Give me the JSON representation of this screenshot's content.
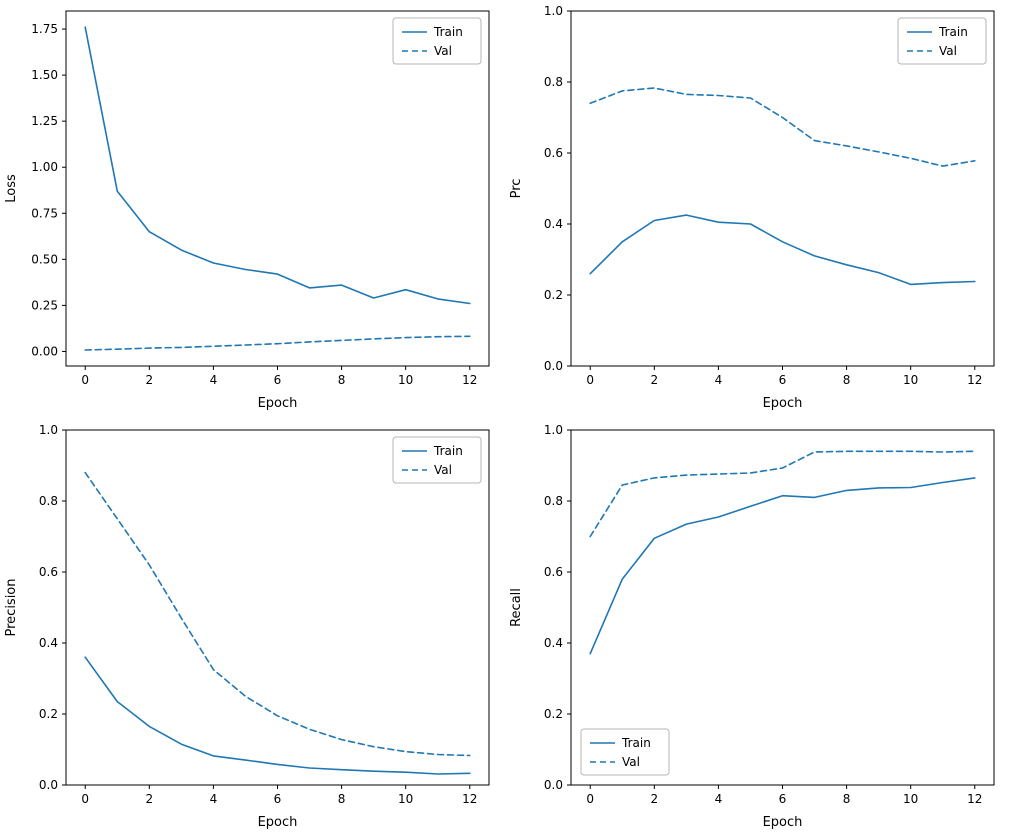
{
  "figure": {
    "background": "#ffffff",
    "line_color": "#1f77b4",
    "axis_color": "#000000",
    "legend_border_color": "#b4b4b4",
    "legend_labels": [
      "Train",
      "Val"
    ]
  },
  "chart_data": [
    {
      "type": "line",
      "title": "",
      "xlabel": "Epoch",
      "ylabel": "Loss",
      "x": [
        0,
        1,
        2,
        3,
        4,
        5,
        6,
        7,
        8,
        9,
        10,
        11,
        12
      ],
      "series": [
        {
          "name": "Train",
          "style": "solid",
          "values": [
            1.76,
            0.87,
            0.65,
            0.55,
            0.48,
            0.445,
            0.42,
            0.345,
            0.36,
            0.29,
            0.335,
            0.285,
            0.26
          ]
        },
        {
          "name": "Val",
          "style": "dashed",
          "values": [
            0.008,
            0.012,
            0.018,
            0.022,
            0.028,
            0.035,
            0.042,
            0.052,
            0.06,
            0.068,
            0.075,
            0.08,
            0.082
          ]
        }
      ],
      "xlim": [
        -0.6,
        12.6
      ],
      "ylim": [
        -0.079,
        1.848
      ],
      "xticks": [
        0,
        2,
        4,
        6,
        8,
        10,
        12
      ],
      "yticks": [
        0.0,
        0.25,
        0.5,
        0.75,
        1.0,
        1.25,
        1.5,
        1.75
      ],
      "ytick_decimals": 2,
      "grid": false,
      "legend_position": "upper-right"
    },
    {
      "type": "line",
      "title": "",
      "xlabel": "Epoch",
      "ylabel": "Prc",
      "x": [
        0,
        1,
        2,
        3,
        4,
        5,
        6,
        7,
        8,
        9,
        10,
        11,
        12
      ],
      "series": [
        {
          "name": "Train",
          "style": "solid",
          "values": [
            0.26,
            0.35,
            0.41,
            0.425,
            0.405,
            0.4,
            0.35,
            0.31,
            0.285,
            0.263,
            0.23,
            0.235,
            0.238
          ]
        },
        {
          "name": "Val",
          "style": "dashed",
          "values": [
            0.74,
            0.775,
            0.783,
            0.765,
            0.762,
            0.755,
            0.7,
            0.635,
            0.62,
            0.603,
            0.585,
            0.563,
            0.578
          ]
        }
      ],
      "xlim": [
        -0.6,
        12.6
      ],
      "ylim": [
        0,
        1
      ],
      "xticks": [
        0,
        2,
        4,
        6,
        8,
        10,
        12
      ],
      "yticks": [
        0.0,
        0.2,
        0.4,
        0.6,
        0.8,
        1.0
      ],
      "ytick_decimals": 1,
      "grid": false,
      "legend_position": "upper-right"
    },
    {
      "type": "line",
      "title": "",
      "xlabel": "Epoch",
      "ylabel": "Precision",
      "x": [
        0,
        1,
        2,
        3,
        4,
        5,
        6,
        7,
        8,
        9,
        10,
        11,
        12
      ],
      "series": [
        {
          "name": "Train",
          "style": "solid",
          "values": [
            0.36,
            0.235,
            0.165,
            0.115,
            0.082,
            0.07,
            0.058,
            0.048,
            0.043,
            0.039,
            0.036,
            0.031,
            0.033
          ]
        },
        {
          "name": "Val",
          "style": "dashed",
          "values": [
            0.88,
            0.75,
            0.62,
            0.47,
            0.325,
            0.25,
            0.195,
            0.157,
            0.128,
            0.108,
            0.094,
            0.086,
            0.083
          ]
        }
      ],
      "xlim": [
        -0.6,
        12.6
      ],
      "ylim": [
        0,
        1
      ],
      "xticks": [
        0,
        2,
        4,
        6,
        8,
        10,
        12
      ],
      "yticks": [
        0.0,
        0.2,
        0.4,
        0.6,
        0.8,
        1.0
      ],
      "ytick_decimals": 1,
      "grid": false,
      "legend_position": "upper-right"
    },
    {
      "type": "line",
      "title": "",
      "xlabel": "Epoch",
      "ylabel": "Recall",
      "x": [
        0,
        1,
        2,
        3,
        4,
        5,
        6,
        7,
        8,
        9,
        10,
        11,
        12
      ],
      "series": [
        {
          "name": "Train",
          "style": "solid",
          "values": [
            0.37,
            0.58,
            0.695,
            0.735,
            0.755,
            0.785,
            0.815,
            0.81,
            0.83,
            0.837,
            0.838,
            0.852,
            0.865
          ]
        },
        {
          "name": "Val",
          "style": "dashed",
          "values": [
            0.7,
            0.845,
            0.865,
            0.873,
            0.876,
            0.879,
            0.893,
            0.938,
            0.94,
            0.94,
            0.94,
            0.938,
            0.94
          ]
        }
      ],
      "xlim": [
        -0.6,
        12.6
      ],
      "ylim": [
        0,
        1
      ],
      "xticks": [
        0,
        2,
        4,
        6,
        8,
        10,
        12
      ],
      "yticks": [
        0.0,
        0.2,
        0.4,
        0.6,
        0.8,
        1.0
      ],
      "ytick_decimals": 1,
      "grid": false,
      "legend_position": "lower-left"
    }
  ]
}
